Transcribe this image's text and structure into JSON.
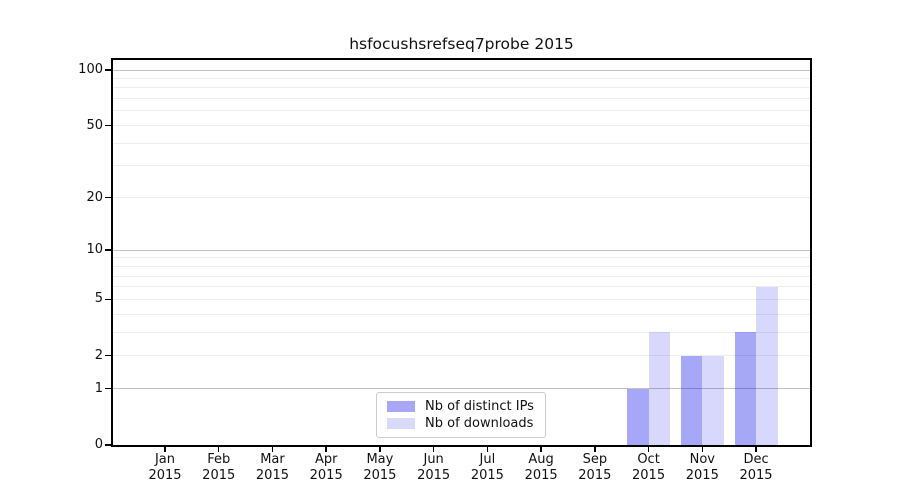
{
  "chart_data": {
    "type": "bar",
    "title": "hsfocushsrefseq7probe 2015",
    "categories": [
      {
        "month": "Jan",
        "year": "2015"
      },
      {
        "month": "Feb",
        "year": "2015"
      },
      {
        "month": "Mar",
        "year": "2015"
      },
      {
        "month": "Apr",
        "year": "2015"
      },
      {
        "month": "May",
        "year": "2015"
      },
      {
        "month": "Jun",
        "year": "2015"
      },
      {
        "month": "Jul",
        "year": "2015"
      },
      {
        "month": "Aug",
        "year": "2015"
      },
      {
        "month": "Sep",
        "year": "2015"
      },
      {
        "month": "Oct",
        "year": "2015"
      },
      {
        "month": "Nov",
        "year": "2015"
      },
      {
        "month": "Dec",
        "year": "2015"
      }
    ],
    "series": [
      {
        "name": "Nb of distinct IPs",
        "color": "#a7a7f5",
        "fill_rgba": "rgba(10,10,235,0.36)",
        "values": [
          0,
          0,
          0,
          0,
          0,
          0,
          0,
          0,
          0,
          1,
          2,
          3
        ]
      },
      {
        "name": "Nb of downloads",
        "color": "#d9d9f9",
        "fill_rgba": "rgba(10,10,235,0.16)",
        "values": [
          0,
          0,
          0,
          0,
          0,
          0,
          0,
          0,
          0,
          3,
          2,
          6
        ]
      }
    ],
    "y_axis": {
      "scale": "log1p",
      "ticks": [
        0,
        1,
        2,
        5,
        10,
        20,
        50,
        100
      ],
      "tick_labels": [
        "0",
        "1",
        "2",
        "5",
        "10",
        "20",
        "50",
        "100"
      ],
      "major_gridlines": [
        1,
        10,
        100
      ],
      "minor_gridlines": [
        2,
        3,
        4,
        5,
        6,
        7,
        8,
        9,
        20,
        30,
        40,
        50,
        60,
        70,
        80,
        90
      ],
      "ylim": [
        0,
        113
      ]
    },
    "legend_position": "lower center",
    "grid": true
  },
  "colors": {
    "spine": "#000000",
    "major_grid": "#c2c2c2",
    "minor_grid": "#ededed",
    "text": "#111111",
    "legend_border": "#cccccc",
    "background": "#ffffff"
  }
}
